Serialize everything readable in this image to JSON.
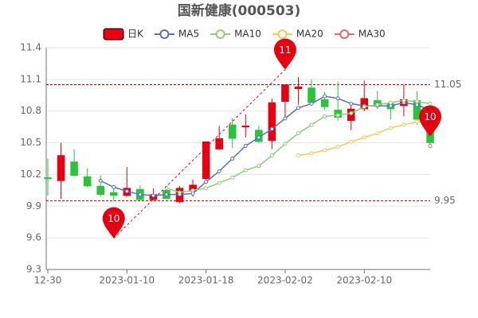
{
  "chart_data": {
    "type": "candlestick",
    "title": "国新健康(000503)",
    "categories": [
      "12-30",
      null,
      null,
      null,
      null,
      null,
      "2023-01-10",
      null,
      null,
      null,
      null,
      null,
      "2023-01-18",
      null,
      null,
      null,
      null,
      null,
      "2023-02-02",
      null,
      null,
      null,
      null,
      null,
      "2023-02-10",
      null,
      null,
      null,
      null,
      null
    ],
    "candles": {
      "name": "日K",
      "up_color": "#e60012",
      "down_color": "#2ac33d",
      "open": [
        10.17,
        10.14,
        10.32,
        10.18,
        10.09,
        10.03,
        10.0,
        10.06,
        9.96,
        10.05,
        9.94,
        10.04,
        10.16,
        10.44,
        10.67,
        10.65,
        10.62,
        10.52,
        10.89,
        11.01,
        11.02,
        10.91,
        10.81,
        10.71,
        10.82,
        10.9,
        10.87,
        10.85,
        10.9,
        10.61
      ],
      "high": [
        10.35,
        10.5,
        10.44,
        10.26,
        10.19,
        10.1,
        10.27,
        10.1,
        10.07,
        10.06,
        10.09,
        10.15,
        10.51,
        10.66,
        10.73,
        10.77,
        10.66,
        10.92,
        11.05,
        11.12,
        11.1,
        10.98,
        11.08,
        10.88,
        11.09,
        10.99,
        10.89,
        11.05,
        10.99,
        10.62
      ],
      "low": [
        10.0,
        9.97,
        10.18,
        10.08,
        9.99,
        9.95,
        9.99,
        9.96,
        9.96,
        9.97,
        9.93,
        9.99,
        10.15,
        10.43,
        10.45,
        10.55,
        10.5,
        10.44,
        10.72,
        10.86,
        10.85,
        10.81,
        10.71,
        10.62,
        10.8,
        10.82,
        10.72,
        10.75,
        10.67,
        10.49
      ],
      "close": [
        10.16,
        10.38,
        10.19,
        10.09,
        10.01,
        10.0,
        10.07,
        9.96,
        10.01,
        9.97,
        10.07,
        10.1,
        10.51,
        10.54,
        10.54,
        10.66,
        10.51,
        10.88,
        11.05,
        11.03,
        10.88,
        10.84,
        10.74,
        10.82,
        10.92,
        10.85,
        10.82,
        10.91,
        10.72,
        10.5
      ]
    },
    "series": [
      {
        "name": "MA5",
        "color": "#5470c6",
        "values": [
          null,
          null,
          null,
          null,
          10.14,
          10.08,
          10.04,
          10.01,
          10.0,
          10.01,
          10.01,
          10.02,
          10.13,
          10.23,
          10.35,
          10.47,
          10.55,
          10.63,
          10.73,
          10.83,
          10.87,
          10.94,
          10.92,
          10.87,
          10.85,
          10.85,
          10.85,
          10.88,
          10.86,
          10.81
        ]
      },
      {
        "name": "MA10",
        "color": "#91cc75",
        "values": [
          null,
          null,
          null,
          null,
          null,
          null,
          null,
          null,
          null,
          10.07,
          10.03,
          10.05,
          10.07,
          10.12,
          10.17,
          10.24,
          10.28,
          10.38,
          10.49,
          10.59,
          10.67,
          10.75,
          10.76,
          10.78,
          10.84,
          10.86,
          10.88,
          10.9,
          10.89,
          10.87
        ]
      },
      {
        "name": "MA20",
        "color": "#fac858",
        "values": [
          null,
          null,
          null,
          null,
          null,
          null,
          null,
          null,
          null,
          null,
          null,
          null,
          null,
          null,
          null,
          null,
          null,
          null,
          null,
          10.38,
          10.4,
          10.43,
          10.46,
          10.51,
          10.55,
          10.59,
          10.64,
          10.67,
          10.7,
          10.72
        ]
      },
      {
        "name": "MA30",
        "color": "#ee6666",
        "values": [
          null,
          null,
          null,
          null,
          null,
          null,
          null,
          null,
          null,
          null,
          null,
          null,
          null,
          null,
          null,
          null,
          null,
          null,
          null,
          null,
          null,
          null,
          null,
          null,
          null,
          null,
          null,
          null,
          null,
          10.47
        ]
      }
    ],
    "ylim": [
      9.3,
      11.4
    ],
    "yticks": [
      9.3,
      9.6,
      9.9,
      10.2,
      10.5,
      10.8,
      11.1,
      11.4
    ],
    "grid": true,
    "mark_lines": [
      11.05,
      9.95
    ],
    "mark_points": [
      {
        "label": "11",
        "value": 11.05,
        "index": 18
      },
      {
        "label": "10",
        "value": 9.95,
        "index": 5
      },
      {
        "label": "10",
        "value": 10.5,
        "index": 29
      }
    ]
  }
}
